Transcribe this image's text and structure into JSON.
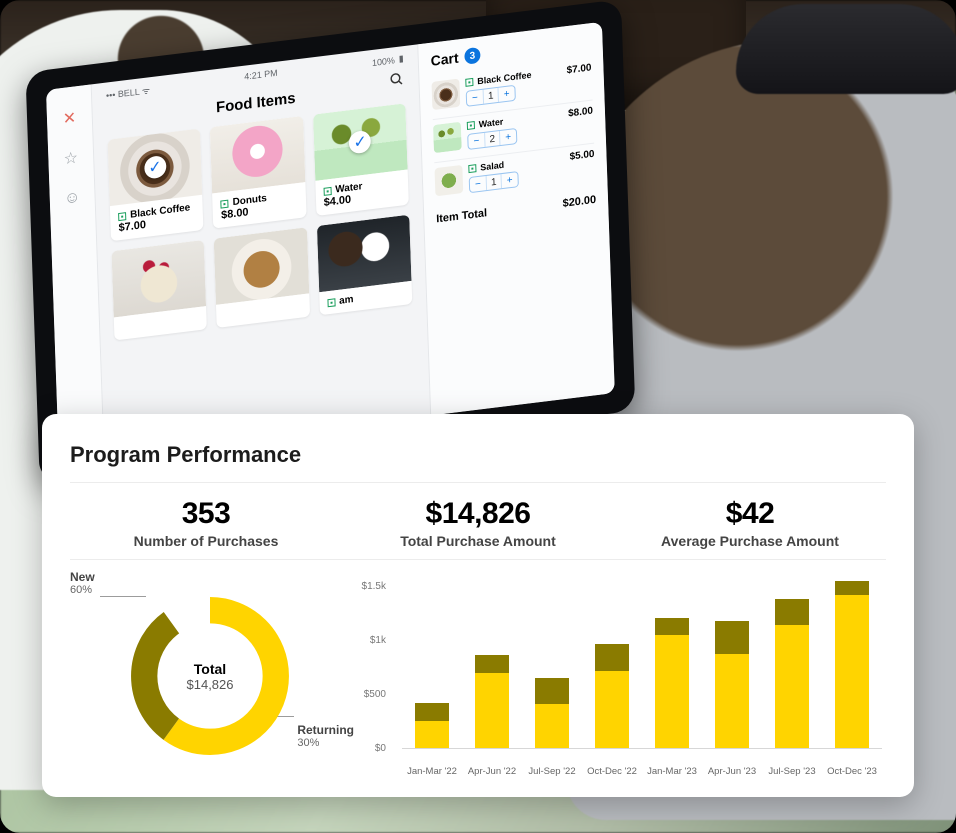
{
  "tablet": {
    "status": {
      "carrier": "••• BELL",
      "wifi": "wifi",
      "time": "4:21 PM",
      "battery": "100%"
    },
    "title": "Food Items",
    "searchIcon": "search",
    "nav": [
      "utensils-icon",
      "star-icon",
      "face-icon"
    ],
    "products": [
      {
        "name": "Black Coffee",
        "price": "$7.00",
        "img": "img-coffee",
        "checked": true
      },
      {
        "name": "Donuts",
        "price": "$8.00",
        "img": "img-donut",
        "checked": false
      },
      {
        "name": "Water",
        "price": "$4.00",
        "img": "img-water",
        "checked": true
      },
      {
        "name": "",
        "price": "",
        "img": "img-cup",
        "checked": false
      },
      {
        "name": "",
        "price": "",
        "img": "img-bowl",
        "checked": false
      },
      {
        "name": "am",
        "price": "",
        "img": "img-ice",
        "checked": false
      }
    ],
    "cart": {
      "title": "Cart",
      "badge": "3",
      "items": [
        {
          "name": "Black Coffee",
          "qty": "1",
          "price": "$7.00",
          "img": "img-coffee"
        },
        {
          "name": "Water",
          "qty": "2",
          "price": "$8.00",
          "img": "img-water"
        },
        {
          "name": "Salad",
          "qty": "1",
          "price": "$5.00",
          "img": "img-salad"
        }
      ],
      "totalLabel": "Item Total",
      "totalValue": "$20.00"
    }
  },
  "dashboard": {
    "title": "Program Performance",
    "kpis": [
      {
        "value": "353",
        "label": "Number of Purchases"
      },
      {
        "value": "$14,826",
        "label": "Total Purchase Amount"
      },
      {
        "value": "$42",
        "label": "Average Purchase Amount"
      }
    ],
    "donut": {
      "centerTitle": "Total",
      "centerValue": "$14,826",
      "segments": [
        {
          "label": "New",
          "pct": "60%",
          "value": 60,
          "color": "#ffd400"
        },
        {
          "label": "Returning",
          "pct": "30%",
          "value": 30,
          "color": "#8a7b00"
        }
      ],
      "remainderValue": 10,
      "strokeWidth": 28,
      "radius": 70
    },
    "bars": {
      "type": "stacked-bar",
      "ylim": [
        0,
        1600
      ],
      "yticks": [
        {
          "v": 0,
          "label": "$0"
        },
        {
          "v": 500,
          "label": "$500"
        },
        {
          "v": 1000,
          "label": "$1k"
        },
        {
          "v": 1500,
          "label": "$1.5k"
        }
      ],
      "colors": {
        "bottom": "#ffd400",
        "top": "#8a7b00",
        "grid": "#d7d7d7",
        "bg": "#ffffff"
      },
      "bar_width_pct": 56,
      "categories": [
        "Jan-Mar '22",
        "Apr-Jun '22",
        "Jul-Sep '22",
        "Oct-Dec '22",
        "Jan-Mar '23",
        "Apr-Jun '23",
        "Jul-Sep '23",
        "Oct-Dec '23"
      ],
      "series": [
        {
          "bottom": 260,
          "top": 170
        },
        {
          "bottom": 700,
          "top": 170
        },
        {
          "bottom": 420,
          "top": 240
        },
        {
          "bottom": 720,
          "top": 250
        },
        {
          "bottom": 1050,
          "top": 160
        },
        {
          "bottom": 880,
          "top": 300
        },
        {
          "bottom": 1150,
          "top": 240
        },
        {
          "bottom": 1420,
          "top": 130
        }
      ]
    }
  }
}
